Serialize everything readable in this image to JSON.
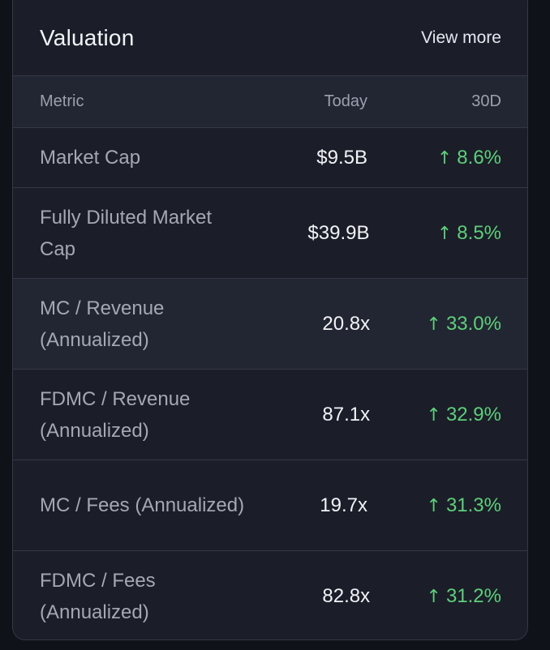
{
  "card": {
    "title": "Valuation",
    "view_more_label": "View more"
  },
  "table": {
    "headers": {
      "metric": "Metric",
      "today": "Today",
      "change": "30D"
    },
    "rows": [
      {
        "metric": "Market Cap",
        "today": "$9.5B",
        "change": "8.6%",
        "direction": "up"
      },
      {
        "metric": "Fully Diluted Market Cap",
        "today": "$39.9B",
        "change": "8.5%",
        "direction": "up"
      },
      {
        "metric": "MC / Revenue (Annualized)",
        "today": "20.8x",
        "change": "33.0%",
        "direction": "up"
      },
      {
        "metric": "FDMC / Revenue (Annualized)",
        "today": "87.1x",
        "change": "32.9%",
        "direction": "up"
      },
      {
        "metric": "MC / Fees (Annualized)",
        "today": "19.7x",
        "change": "31.3%",
        "direction": "up"
      },
      {
        "metric": "FDMC / Fees (Annualized)",
        "today": "82.8x",
        "change": "31.2%",
        "direction": "up"
      }
    ],
    "arrow_glyph": "↑",
    "arrow_icon": "arrow-up-icon"
  },
  "colors": {
    "background": "#10121a",
    "card": "#1b1e29",
    "header_row": "#222632",
    "positive": "#5fce7a",
    "muted_text": "#a3a8b4"
  }
}
